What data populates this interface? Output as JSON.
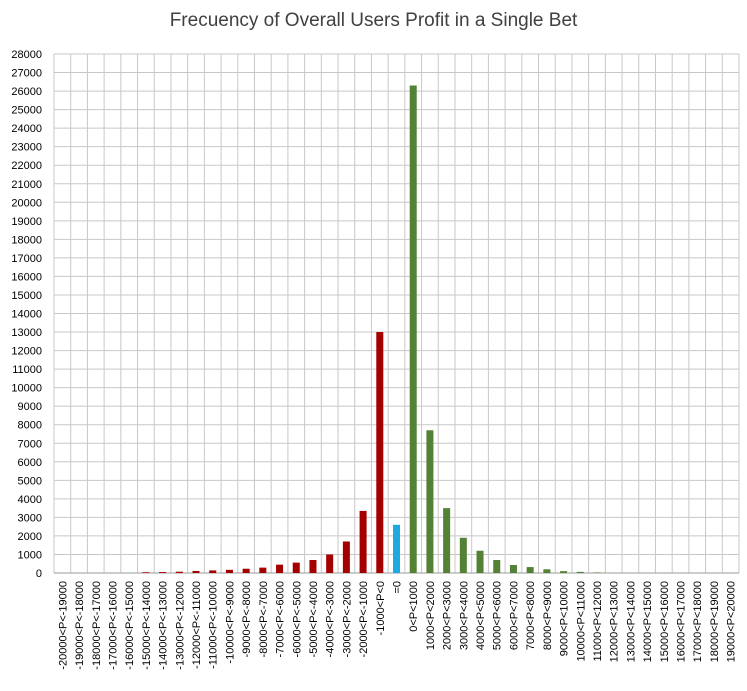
{
  "chart_data": {
    "type": "bar",
    "title": "Frecuency of Overall Users Profit in a Single Bet",
    "xlabel": "",
    "ylabel": "",
    "ylim": [
      0,
      28000
    ],
    "ytick_step": 1000,
    "grid": true,
    "legend": "none",
    "categories": [
      "-20000<P<-19000",
      "-19000<P<-18000",
      "-18000<P<-17000",
      "-17000<P<-16000",
      "-16000<P<-15000",
      "-15000<P<-14000",
      "-14000<P<-13000",
      "-13000<P<-12000",
      "-12000<P<-11000",
      "-11000<P<-10000",
      "-10000<P<-9000",
      "-9000<P<-8000",
      "-8000<P<-7000",
      "-7000<P<-6000",
      "-6000<P<-5000",
      "-5000<P<-4000",
      "-4000<P<-3000",
      "-3000<P<-2000",
      "-2000<P<-1000",
      "-1000<P<0",
      "=0",
      "0<P<1000",
      "1000<P<2000",
      "2000<P<3000",
      "3000<P<4000",
      "4000<P<5000",
      "5000<P<6000",
      "6000<P<7000",
      "7000<P<8000",
      "8000<P<9000",
      "9000<P<10000",
      "10000<P<11000",
      "11000<P<12000",
      "12000<P<13000",
      "13000<P<14000",
      "14000<P<15000",
      "15000<P<16000",
      "16000<P<17000",
      "17000<P<18000",
      "18000<P<19000",
      "19000<P<20000"
    ],
    "values": [
      0,
      0,
      0,
      0,
      0,
      40,
      50,
      70,
      110,
      140,
      170,
      230,
      290,
      450,
      560,
      700,
      1000,
      1700,
      3350,
      13000,
      2600,
      26300,
      7700,
      3500,
      1900,
      1200,
      700,
      430,
      320,
      200,
      100,
      60,
      30,
      0,
      0,
      0,
      0,
      0,
      0,
      0,
      0
    ],
    "bar_colors": {
      "negative": "#a50000",
      "zero": "#1ea9e1",
      "positive": "#548235"
    }
  }
}
